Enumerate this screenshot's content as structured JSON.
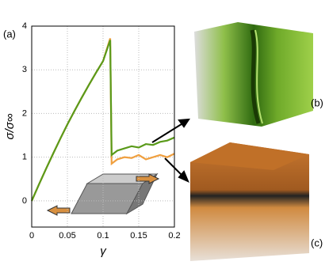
{
  "chart_data": {
    "type": "line",
    "x": [
      0,
      0.01,
      0.02,
      0.03,
      0.04,
      0.05,
      0.06,
      0.07,
      0.08,
      0.09,
      0.1,
      0.11,
      0.112,
      0.12,
      0.13,
      0.14,
      0.15,
      0.16,
      0.17,
      0.18,
      0.19,
      0.2
    ],
    "series": [
      {
        "color": "#5a9a1a",
        "values": [
          0,
          0.37,
          0.73,
          1.08,
          1.42,
          1.75,
          2.06,
          2.36,
          2.65,
          2.93,
          3.2,
          3.68,
          1.05,
          1.15,
          1.2,
          1.25,
          1.22,
          1.3,
          1.28,
          1.35,
          1.38,
          1.45
        ]
      },
      {
        "color": "#f0a040",
        "values": [
          0,
          0.37,
          0.73,
          1.08,
          1.42,
          1.75,
          2.06,
          2.36,
          2.65,
          2.93,
          3.2,
          3.72,
          0.85,
          0.95,
          1.0,
          0.98,
          1.05,
          0.95,
          1.0,
          1.05,
          1.0,
          1.08
        ]
      }
    ],
    "xlabel": "γ",
    "ylabel": "σ/σ∞",
    "xlim": [
      0,
      0.2
    ],
    "xticks": [
      0,
      0.05,
      0.1,
      0.15,
      0.2
    ],
    "ylim": [
      -0.6,
      4
    ],
    "yticks": [
      0,
      1,
      2,
      3,
      4
    ],
    "grid": true,
    "panel_labels": [
      "(a)",
      "(b)",
      "(c)"
    ]
  }
}
